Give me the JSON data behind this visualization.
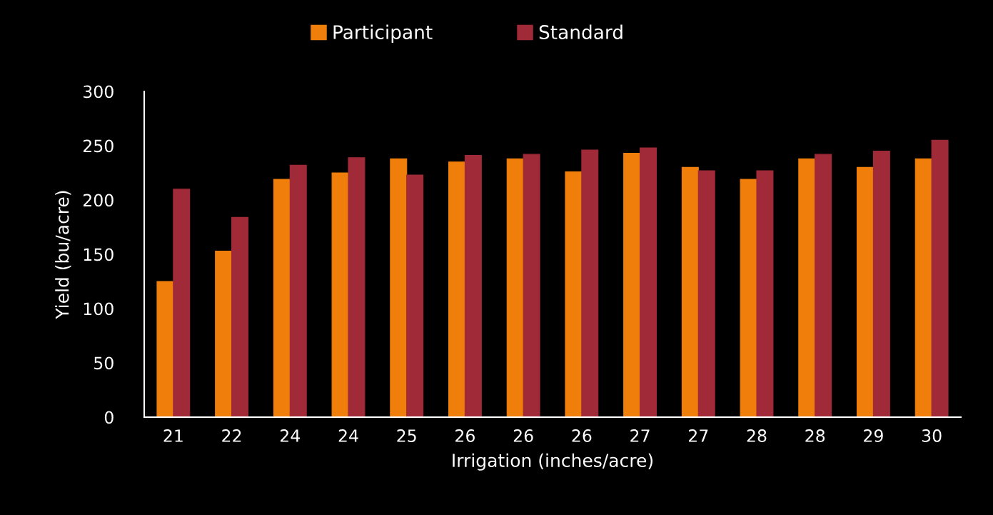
{
  "chart_data": {
    "type": "bar",
    "xlabel": "Irrigation (inches/acre)",
    "ylabel": "Yield (bu/acre)",
    "categories": [
      "21",
      "22",
      "24",
      "24",
      "25",
      "26",
      "26",
      "26",
      "27",
      "27",
      "28",
      "28",
      "29",
      "30"
    ],
    "series": [
      {
        "name": "Participant",
        "color": "#ef7f0a",
        "values": [
          125,
          153,
          219,
          225,
          238,
          235,
          238,
          226,
          243,
          230,
          219,
          238,
          230,
          238
        ]
      },
      {
        "name": "Standard",
        "color": "#a12a38",
        "values": [
          210,
          184,
          232,
          239,
          223,
          241,
          242,
          246,
          248,
          227,
          227,
          242,
          245,
          255
        ]
      }
    ],
    "ylim": [
      0,
      300
    ],
    "yticks": [
      0,
      50,
      100,
      150,
      200,
      250,
      300
    ],
    "grid": false,
    "legend": "top"
  }
}
